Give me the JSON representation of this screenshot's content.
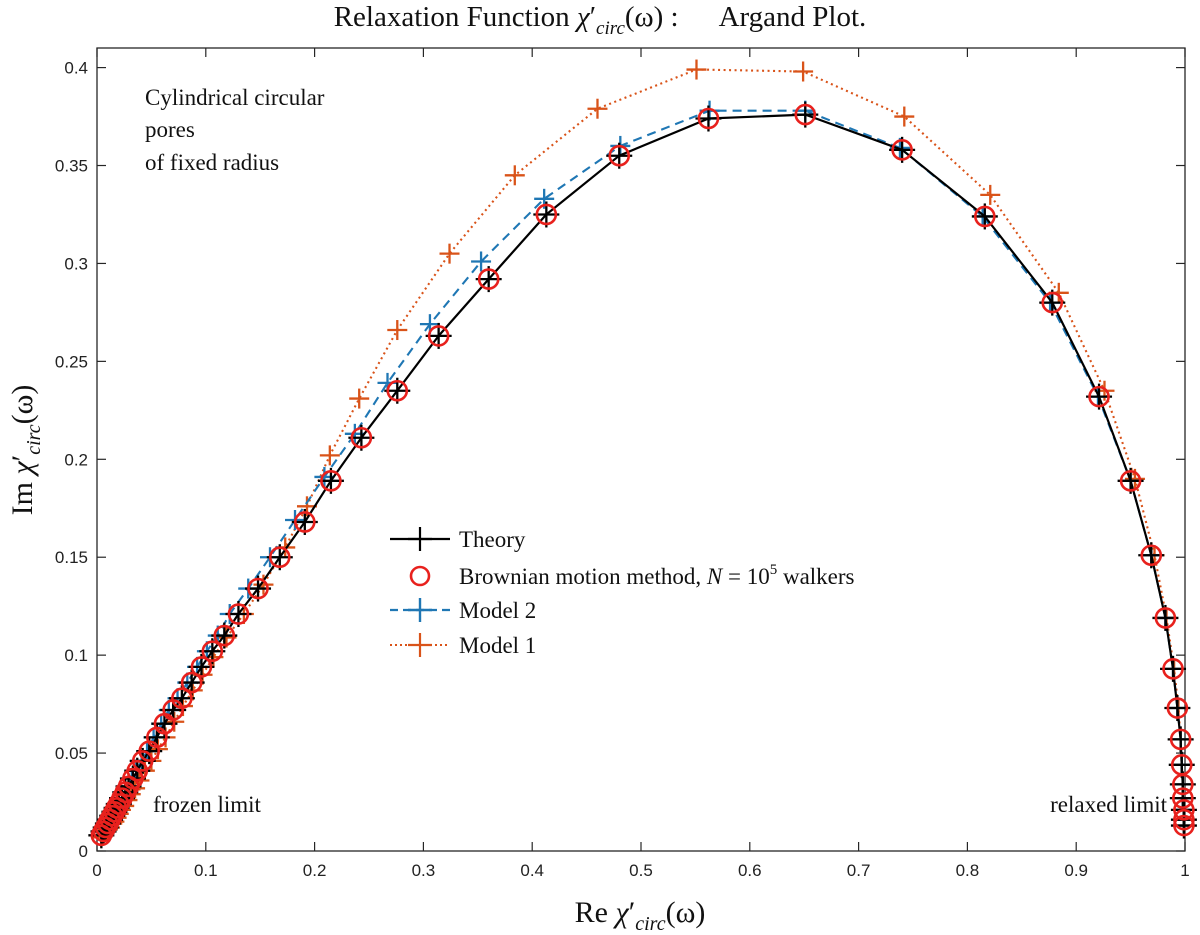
{
  "chart_data": {
    "type": "line",
    "title": {
      "main": "Relaxation Function ",
      "sym": "χ",
      "prime": "′",
      "sub": "circ",
      "arg": "(ω) :",
      "suffix": "Argand Plot."
    },
    "xlabel": {
      "prefix": "Re ",
      "sym": "χ",
      "prime": "′",
      "sub": "circ",
      "arg": "(ω)"
    },
    "ylabel": {
      "prefix": "Im ",
      "sym": "χ",
      "prime": "′",
      "sub": "circ",
      "arg": "(ω)"
    },
    "xlim": [
      0,
      1
    ],
    "ylim": [
      0,
      0.41
    ],
    "xticks": [
      0,
      0.1,
      0.2,
      0.3,
      0.4,
      0.5,
      0.6,
      0.7,
      0.8,
      0.9,
      1
    ],
    "xtick_labels": [
      "0",
      "0.1",
      "0.2",
      "0.3",
      "0.4",
      "0.5",
      "0.6",
      "0.7",
      "0.8",
      "0.9",
      "1"
    ],
    "yticks": [
      0,
      0.05,
      0.1,
      0.15,
      0.2,
      0.25,
      0.3,
      0.35,
      0.4
    ],
    "ytick_labels": [
      "0",
      "0.05",
      "0.1",
      "0.15",
      "0.2",
      "0.25",
      "0.3",
      "0.35",
      "0.4"
    ],
    "grid": false,
    "legend_position": "center",
    "legend": {
      "theory": "Theory",
      "brownian": {
        "prefix": "Brownian motion method, ",
        "var": "N",
        "eq": " = 10",
        "exp": "5",
        "suffix": " walkers"
      },
      "model2": "Model 2",
      "model1": "Model 1"
    },
    "annotations": {
      "pore_line1": "Cylindrical circular",
      "pore_line2": "pores",
      "pore_line3": "of fixed radius",
      "frozen": "frozen limit",
      "relaxed": "relaxed limit"
    },
    "series": [
      {
        "name": "Theory",
        "color": "#000000",
        "line_style": "solid",
        "marker": "plus",
        "x": [
          0.004,
          0.006,
          0.008,
          0.01,
          0.012,
          0.014,
          0.016,
          0.018,
          0.02,
          0.023,
          0.026,
          0.029,
          0.033,
          0.037,
          0.042,
          0.048,
          0.055,
          0.062,
          0.07,
          0.078,
          0.087,
          0.096,
          0.106,
          0.117,
          0.13,
          0.148,
          0.168,
          0.191,
          0.215,
          0.243,
          0.276,
          0.314,
          0.36,
          0.413,
          0.48,
          0.562,
          0.651,
          0.74,
          0.816,
          0.878,
          0.921,
          0.95,
          0.969,
          0.982,
          0.989,
          0.993,
          0.996,
          0.997,
          0.998,
          0.998,
          0.999,
          0.999,
          0.999
        ],
        "y": [
          0.008,
          0.01,
          0.012,
          0.014,
          0.016,
          0.018,
          0.02,
          0.022,
          0.024,
          0.027,
          0.03,
          0.033,
          0.037,
          0.041,
          0.046,
          0.051,
          0.058,
          0.065,
          0.072,
          0.078,
          0.086,
          0.094,
          0.102,
          0.11,
          0.121,
          0.134,
          0.15,
          0.168,
          0.189,
          0.211,
          0.235,
          0.263,
          0.292,
          0.325,
          0.355,
          0.374,
          0.376,
          0.358,
          0.324,
          0.28,
          0.232,
          0.189,
          0.151,
          0.119,
          0.093,
          0.073,
          0.057,
          0.044,
          0.034,
          0.027,
          0.021,
          0.016,
          0.013
        ]
      },
      {
        "name": "Brownian motion method",
        "color": "#e8211d",
        "line_style": "none",
        "marker": "circle",
        "x": [
          0.004,
          0.006,
          0.008,
          0.01,
          0.012,
          0.014,
          0.016,
          0.018,
          0.02,
          0.023,
          0.026,
          0.029,
          0.033,
          0.037,
          0.042,
          0.048,
          0.055,
          0.062,
          0.07,
          0.078,
          0.087,
          0.096,
          0.106,
          0.117,
          0.13,
          0.148,
          0.168,
          0.191,
          0.215,
          0.243,
          0.276,
          0.314,
          0.36,
          0.413,
          0.48,
          0.562,
          0.651,
          0.74,
          0.816,
          0.878,
          0.921,
          0.95,
          0.969,
          0.982,
          0.989,
          0.993,
          0.996,
          0.997,
          0.998,
          0.998,
          0.999,
          0.999,
          0.999
        ],
        "y": [
          0.008,
          0.01,
          0.012,
          0.014,
          0.016,
          0.018,
          0.02,
          0.022,
          0.024,
          0.027,
          0.03,
          0.033,
          0.037,
          0.041,
          0.046,
          0.051,
          0.058,
          0.065,
          0.072,
          0.078,
          0.086,
          0.094,
          0.102,
          0.11,
          0.121,
          0.134,
          0.15,
          0.168,
          0.189,
          0.211,
          0.235,
          0.263,
          0.292,
          0.325,
          0.355,
          0.374,
          0.376,
          0.358,
          0.324,
          0.28,
          0.232,
          0.189,
          0.151,
          0.119,
          0.093,
          0.073,
          0.057,
          0.044,
          0.034,
          0.027,
          0.021,
          0.016,
          0.013
        ]
      },
      {
        "name": "Model 2",
        "color": "#1f77b4",
        "line_style": "dashed",
        "marker": "plus",
        "x": [
          0.004,
          0.006,
          0.008,
          0.01,
          0.012,
          0.014,
          0.016,
          0.018,
          0.02,
          0.023,
          0.026,
          0.029,
          0.032,
          0.036,
          0.041,
          0.046,
          0.052,
          0.059,
          0.066,
          0.074,
          0.083,
          0.092,
          0.101,
          0.111,
          0.122,
          0.139,
          0.159,
          0.182,
          0.209,
          0.237,
          0.267,
          0.306,
          0.353,
          0.411,
          0.481,
          0.563,
          0.651,
          0.738,
          0.814,
          0.876,
          0.92,
          0.95,
          0.969,
          0.982,
          0.989,
          0.993,
          0.996,
          0.997,
          0.998,
          0.998,
          0.999,
          0.999,
          0.999
        ],
        "y": [
          0.008,
          0.01,
          0.012,
          0.014,
          0.016,
          0.018,
          0.02,
          0.022,
          0.024,
          0.027,
          0.03,
          0.033,
          0.037,
          0.041,
          0.046,
          0.051,
          0.058,
          0.065,
          0.072,
          0.078,
          0.086,
          0.094,
          0.102,
          0.11,
          0.121,
          0.134,
          0.15,
          0.169,
          0.191,
          0.213,
          0.239,
          0.269,
          0.301,
          0.333,
          0.36,
          0.378,
          0.378,
          0.359,
          0.324,
          0.28,
          0.232,
          0.189,
          0.151,
          0.119,
          0.093,
          0.073,
          0.057,
          0.044,
          0.034,
          0.027,
          0.021,
          0.016,
          0.013
        ]
      },
      {
        "name": "Model 1",
        "color": "#d95319",
        "line_style": "dotted",
        "marker": "plus",
        "x": [
          0.004,
          0.006,
          0.008,
          0.01,
          0.012,
          0.014,
          0.016,
          0.018,
          0.02,
          0.022,
          0.025,
          0.028,
          0.031,
          0.035,
          0.039,
          0.044,
          0.05,
          0.056,
          0.063,
          0.071,
          0.079,
          0.088,
          0.097,
          0.107,
          0.119,
          0.135,
          0.153,
          0.173,
          0.193,
          0.214,
          0.241,
          0.276,
          0.324,
          0.384,
          0.46,
          0.551,
          0.649,
          0.742,
          0.821,
          0.884,
          0.926,
          0.954,
          0.972,
          0.983,
          0.99,
          0.994,
          0.996,
          0.997,
          0.998,
          0.998,
          0.999,
          0.999,
          0.999
        ],
        "y": [
          0.007,
          0.008,
          0.01,
          0.011,
          0.012,
          0.014,
          0.015,
          0.017,
          0.019,
          0.021,
          0.023,
          0.026,
          0.029,
          0.032,
          0.036,
          0.041,
          0.046,
          0.052,
          0.058,
          0.066,
          0.074,
          0.082,
          0.09,
          0.099,
          0.109,
          0.121,
          0.136,
          0.155,
          0.176,
          0.202,
          0.231,
          0.266,
          0.305,
          0.345,
          0.379,
          0.399,
          0.398,
          0.375,
          0.335,
          0.285,
          0.235,
          0.19,
          0.151,
          0.119,
          0.093,
          0.073,
          0.057,
          0.044,
          0.034,
          0.027,
          0.021,
          0.016,
          0.013
        ]
      }
    ]
  }
}
